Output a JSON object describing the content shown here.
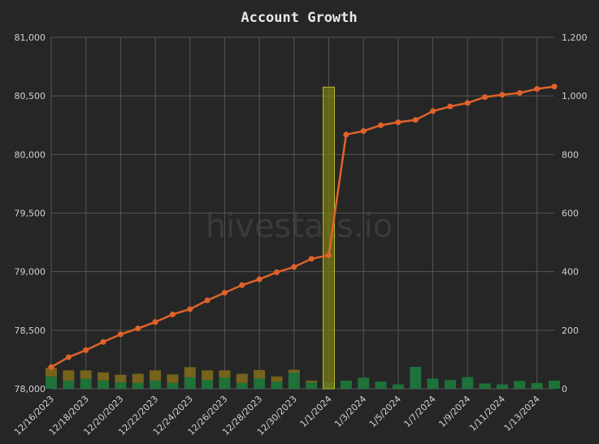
{
  "chart_data": {
    "type": "line",
    "title": "Account Growth",
    "watermark": "hivestats.io",
    "x": [
      "12/16/2023",
      "12/17/2023",
      "12/18/2023",
      "12/19/2023",
      "12/20/2023",
      "12/21/2023",
      "12/22/2023",
      "12/23/2023",
      "12/24/2023",
      "12/25/2023",
      "12/26/2023",
      "12/27/2023",
      "12/28/2023",
      "12/29/2023",
      "12/30/2023",
      "12/31/2023",
      "1/1/2024",
      "1/2/2024",
      "1/3/2024",
      "1/4/2024",
      "1/5/2024",
      "1/6/2024",
      "1/7/2024",
      "1/8/2024",
      "1/9/2024",
      "1/10/2024",
      "1/11/2024",
      "1/12/2024",
      "1/13/2024",
      "1/14/2024"
    ],
    "x_tick_labels": [
      "12/16/2023",
      "12/18/2023",
      "12/20/2023",
      "12/22/2023",
      "12/24/2023",
      "12/26/2023",
      "12/28/2023",
      "12/30/2023",
      "1/1/2024",
      "1/3/2024",
      "1/5/2024",
      "1/7/2024",
      "1/9/2024",
      "1/11/2024",
      "1/13/2024"
    ],
    "y_left": {
      "ylim": [
        78000,
        81000
      ],
      "ticks": [
        78000,
        78500,
        79000,
        79500,
        80000,
        80500,
        81000
      ],
      "tick_labels": [
        "78,000",
        "78,500",
        "79,000",
        "79,500",
        "80,000",
        "80,500",
        "81,000"
      ]
    },
    "y_right": {
      "ylim": [
        0,
        1200
      ],
      "ticks": [
        0,
        200,
        400,
        600,
        800,
        1000,
        1200
      ],
      "tick_labels": [
        "0",
        "200",
        "400",
        "600",
        "800",
        "1,000",
        "1,200"
      ]
    },
    "grid": true,
    "series": [
      {
        "kind": "line",
        "axis": "left",
        "color": "#e0622a",
        "values": [
          78185,
          78270,
          78330,
          78400,
          78465,
          78515,
          78570,
          78635,
          78680,
          78755,
          78820,
          78885,
          78935,
          78995,
          79040,
          79110,
          79140,
          80170,
          80200,
          80250,
          80275,
          80295,
          80370,
          80410,
          80440,
          80490,
          80510,
          80525,
          80560,
          80580
        ]
      },
      {
        "kind": "bar",
        "axis": "right",
        "color": "#1e7a3c",
        "values": [
          42,
          28,
          34,
          28,
          22,
          20,
          28,
          20,
          40,
          30,
          38,
          20,
          35,
          24,
          55,
          22,
          22,
          28,
          38,
          25,
          15,
          75,
          35,
          30,
          40,
          18,
          15,
          27,
          20,
          28
        ]
      },
      {
        "kind": "bar",
        "axis": "right",
        "color": "#7f6a1c",
        "stacked_on_previous": true,
        "values": [
          30,
          35,
          29,
          28,
          26,
          31,
          35,
          29,
          34,
          33,
          25,
          31,
          29,
          18,
          10,
          6,
          0,
          0,
          0,
          0,
          0,
          0,
          0,
          0,
          0,
          0,
          0,
          0,
          0,
          0
        ]
      },
      {
        "kind": "bar",
        "axis": "right",
        "color": "#7a7a14",
        "highlight": true,
        "values": [
          0,
          0,
          0,
          0,
          0,
          0,
          0,
          0,
          0,
          0,
          0,
          0,
          0,
          0,
          0,
          0,
          1030,
          0,
          0,
          0,
          0,
          0,
          0,
          0,
          0,
          0,
          0,
          0,
          0,
          0
        ]
      }
    ]
  }
}
